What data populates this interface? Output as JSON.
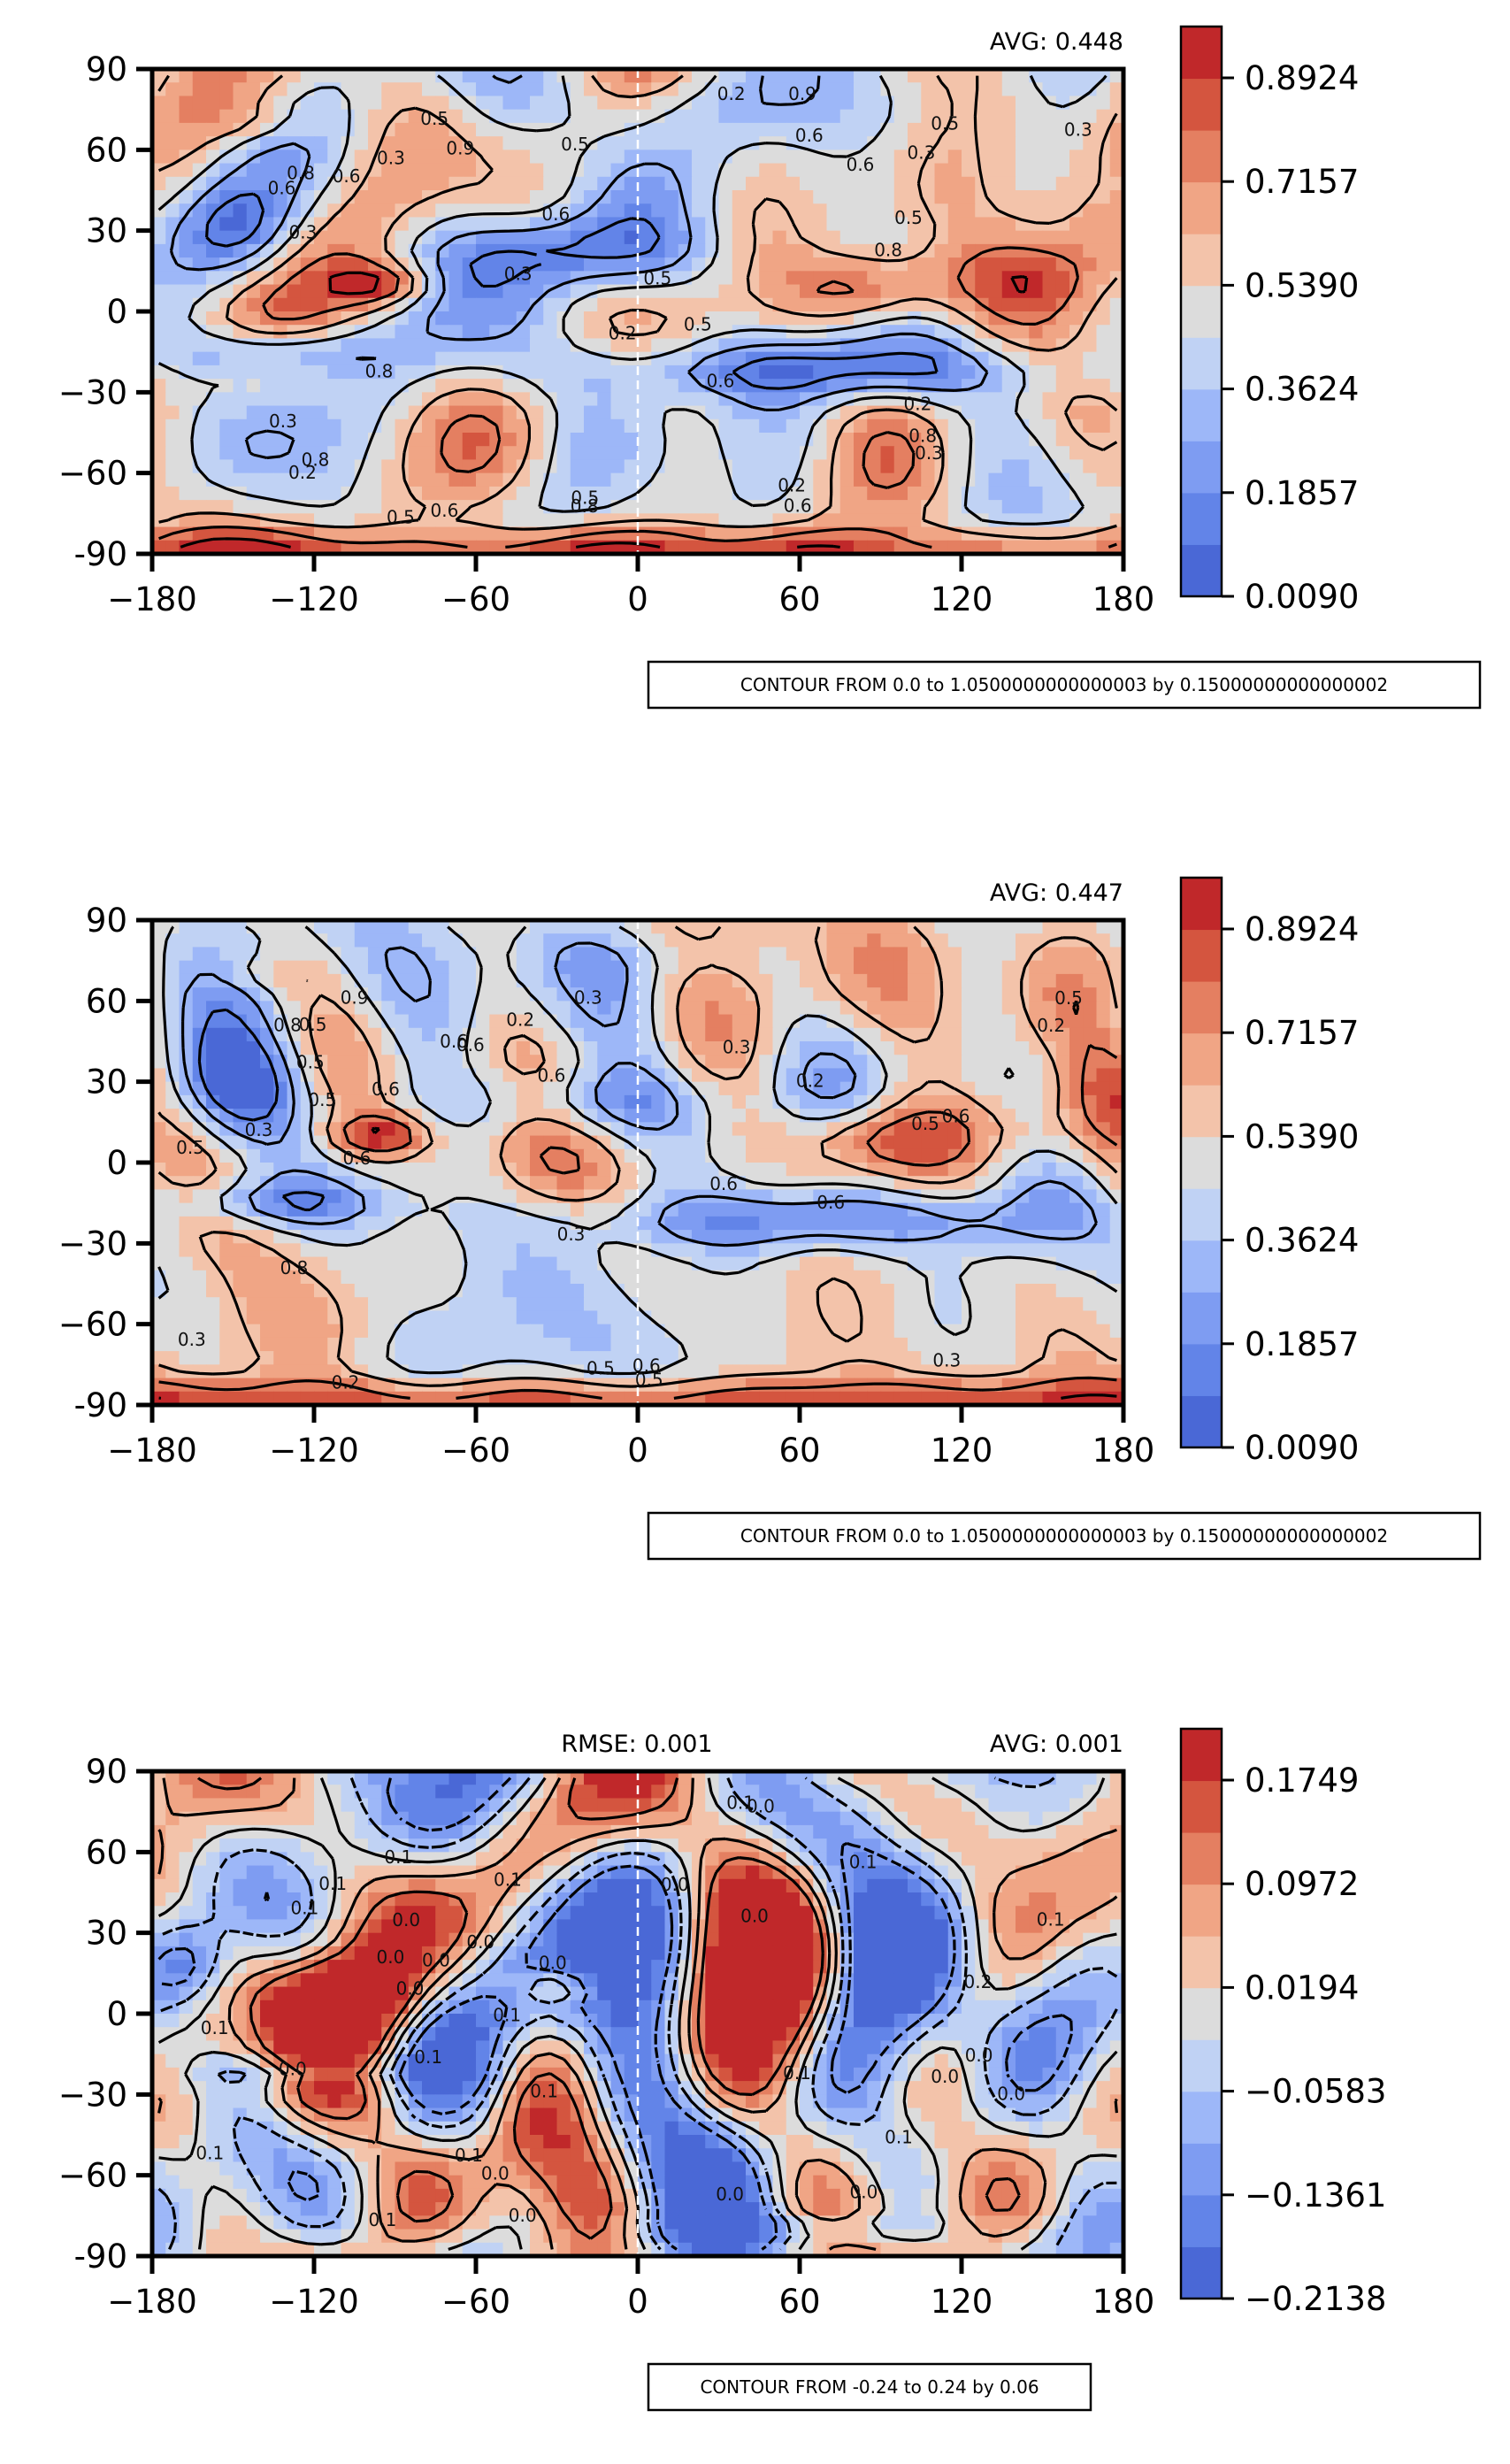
{
  "figure": {
    "x_ticks": [
      "−180",
      "−120",
      "−60",
      "0",
      "60",
      "120",
      "180"
    ],
    "y_ticks": [
      "90",
      "60",
      "30",
      "0",
      "−30",
      "−60",
      "-90"
    ],
    "xlim": [
      -180,
      180
    ],
    "ylim": [
      -90,
      90
    ]
  },
  "chart_data": [
    {
      "type": "heatmap",
      "name": "panel-1",
      "top_left_label": "",
      "avg_label": "AVG: 0.448",
      "colorbar_ticks": [
        "0.8924",
        "0.7157",
        "0.5390",
        "0.3624",
        "0.1857",
        "0.0090"
      ],
      "colorbar_range": [
        0.009,
        0.97
      ],
      "colors": [
        "#4a68d6",
        "#6284e8",
        "#7e9cf2",
        "#9db7f8",
        "#c0d2f4",
        "#dcdcdc",
        "#f3c3aa",
        "#f0a585",
        "#e47f61",
        "#d4553f",
        "#c0282a"
      ],
      "contour_note": "CONTOUR FROM 0.0 to 1.0500000000000003 by 0.15000000000000002",
      "contour_labels": [
        "0.5",
        "0.5",
        "0.6",
        "0.6",
        "0.3",
        "0.2",
        "0.3",
        "0.2",
        "0.6",
        "0.6",
        "0.8",
        "0.9",
        "0.8",
        "0.3",
        "0.5",
        "0.5",
        "0.8",
        "0.9",
        "0.8",
        "0.6",
        "0.2",
        "0.5",
        "0.3",
        "0.2",
        "0.3",
        "0.3",
        "0.5",
        "0.5",
        "0.6",
        "0.8",
        "0.6",
        "0.5",
        "0.8",
        "0.2",
        "0.3",
        "0.6"
      ]
    },
    {
      "type": "heatmap",
      "name": "panel-2",
      "top_left_label": "",
      "avg_label": "AVG: 0.447",
      "colorbar_ticks": [
        "0.8924",
        "0.7157",
        "0.5390",
        "0.3624",
        "0.1857",
        "0.0090"
      ],
      "colorbar_range": [
        0.009,
        0.97
      ],
      "colors": [
        "#4a68d6",
        "#6284e8",
        "#7e9cf2",
        "#9db7f8",
        "#c0d2f4",
        "#dcdcdc",
        "#f3c3aa",
        "#f0a585",
        "#e47f61",
        "#d4553f",
        "#c0282a"
      ],
      "contour_note": "CONTOUR FROM 0.0 to 1.0500000000000003 by 0.15000000000000002",
      "contour_labels": [
        "0.5",
        "0.5",
        "0.3",
        "0.6",
        "0.6",
        "0.6",
        "0.3",
        "0.2",
        "0.3",
        "0.5",
        "0.6",
        "0.2",
        "0.3",
        "0.3",
        "0.5",
        "0.6",
        "0.9",
        "0.6",
        "0.2",
        "0.3",
        "0.5",
        "0.6",
        "0.2",
        "0.5",
        "0.5",
        "0.8",
        "0.8",
        "0.5",
        "0.6",
        "0.6"
      ]
    },
    {
      "type": "heatmap",
      "name": "panel-3",
      "top_left_label": "RMSE: 0.001",
      "avg_label": "AVG: 0.001",
      "colorbar_ticks": [
        "0.1749",
        "0.0972",
        "0.0194",
        "−0.0583",
        "−0.1361",
        "−0.2138"
      ],
      "colorbar_range": [
        -0.2138,
        0.2138
      ],
      "colors": [
        "#4a68d6",
        "#6284e8",
        "#7e9cf2",
        "#9db7f8",
        "#c0d2f4",
        "#dcdcdc",
        "#f3c3aa",
        "#f0a585",
        "#e47f61",
        "#d4553f",
        "#c0282a"
      ],
      "contour_note": "CONTOUR FROM -0.24 to 0.24 by 0.06",
      "contour_labels": [
        "0.0",
        "0.0",
        "0.0",
        "0.0",
        "0.1",
        "0.1",
        "0.1",
        "0.2",
        "0.1",
        "0.0",
        "0.1",
        "0.0",
        "0.1",
        "0.1",
        "0.0",
        "0.1",
        "0.0",
        "0.0",
        "0.0",
        "0.1",
        "0.1",
        "0.1",
        "0.0",
        "0.0",
        "0.1",
        "0.0",
        "0.0",
        "0.0",
        "0.1",
        "0.1",
        "0.1",
        "0.0",
        "0.0",
        "0.1"
      ]
    }
  ]
}
